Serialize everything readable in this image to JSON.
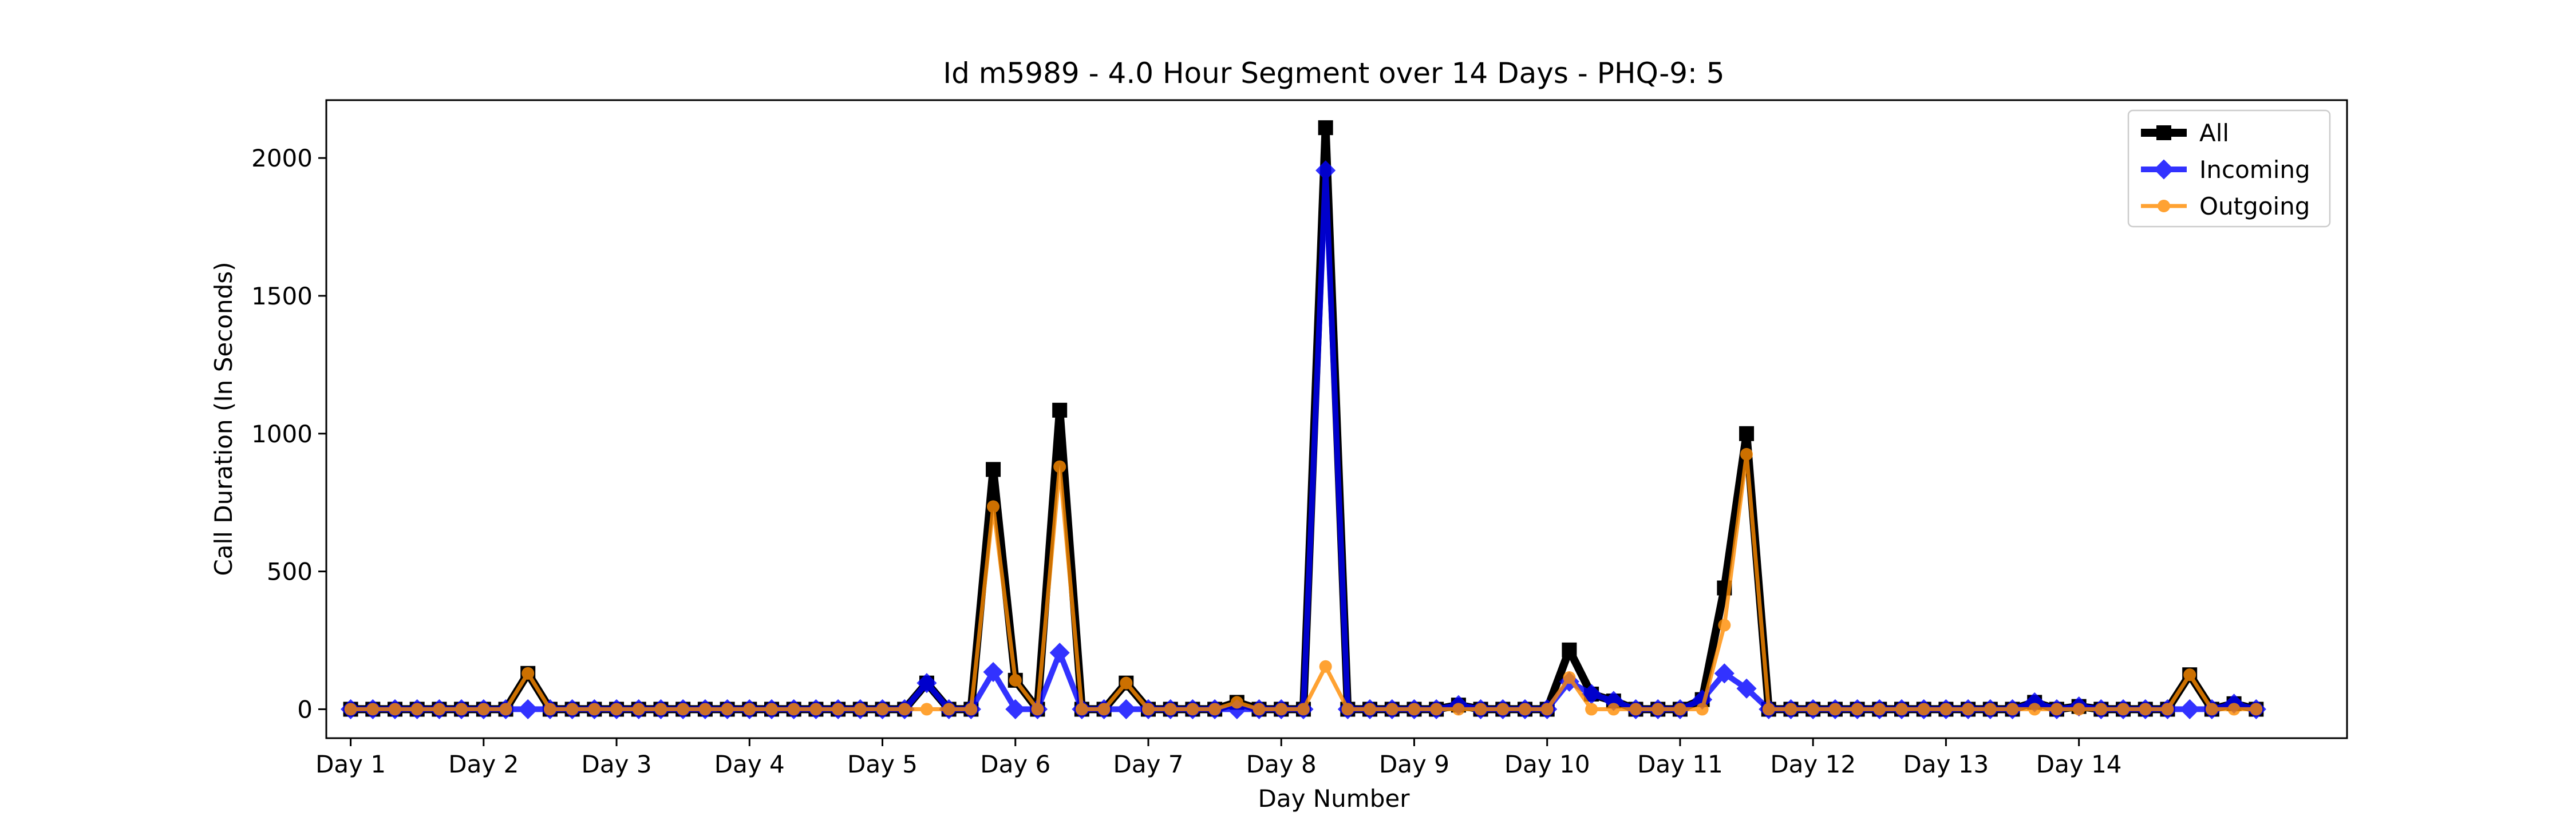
{
  "chart_data": {
    "type": "line",
    "title": "Id m5989 - 4.0 Hour Segment over 14 Days - PHQ-9: 5",
    "xlabel": "Day Number",
    "ylabel": "Call Duration (In Seconds)",
    "xlim": [
      -1.1,
      90.1
    ],
    "ylim": [
      -105,
      2210
    ],
    "yticks": [
      0,
      500,
      1000,
      1500,
      2000
    ],
    "xticks": [
      {
        "pos": 0,
        "label": "Day 1"
      },
      {
        "pos": 6,
        "label": "Day 2"
      },
      {
        "pos": 12,
        "label": "Day 3"
      },
      {
        "pos": 18,
        "label": "Day 4"
      },
      {
        "pos": 24,
        "label": "Day 5"
      },
      {
        "pos": 30,
        "label": "Day 6"
      },
      {
        "pos": 36,
        "label": "Day 7"
      },
      {
        "pos": 42,
        "label": "Day 8"
      },
      {
        "pos": 48,
        "label": "Day 9"
      },
      {
        "pos": 54,
        "label": "Day 10"
      },
      {
        "pos": 60,
        "label": "Day 11"
      },
      {
        "pos": 66,
        "label": "Day 12"
      },
      {
        "pos": 72,
        "label": "Day 13"
      },
      {
        "pos": 78,
        "label": "Day 14"
      }
    ],
    "grid": false,
    "legend": "top-right",
    "series": [
      {
        "name": "All",
        "color": "#000000",
        "marker": "square",
        "values": [
          0,
          0,
          0,
          0,
          0,
          0,
          0,
          0,
          130,
          0,
          0,
          0,
          0,
          0,
          0,
          0,
          0,
          0,
          0,
          0,
          0,
          0,
          0,
          0,
          0,
          0,
          95,
          0,
          0,
          870,
          105,
          0,
          1085,
          0,
          0,
          95,
          0,
          0,
          0,
          0,
          25,
          0,
          0,
          0,
          2110,
          0,
          0,
          0,
          0,
          0,
          15,
          0,
          0,
          0,
          0,
          215,
          55,
          30,
          0,
          0,
          0,
          35,
          440,
          1000,
          0,
          0,
          0,
          0,
          0,
          0,
          0,
          0,
          0,
          0,
          0,
          0,
          25,
          0,
          10,
          0,
          0,
          0,
          0,
          125,
          0,
          20,
          0
        ]
      },
      {
        "name": "Incoming",
        "color": "#0000ff",
        "marker": "diamond",
        "values": [
          0,
          0,
          0,
          0,
          0,
          0,
          0,
          0,
          0,
          0,
          0,
          0,
          0,
          0,
          0,
          0,
          0,
          0,
          0,
          0,
          0,
          0,
          0,
          0,
          0,
          0,
          95,
          0,
          0,
          135,
          0,
          0,
          205,
          0,
          0,
          0,
          0,
          0,
          0,
          0,
          0,
          0,
          0,
          0,
          1955,
          0,
          0,
          0,
          0,
          0,
          15,
          0,
          0,
          0,
          0,
          100,
          55,
          30,
          0,
          0,
          0,
          35,
          130,
          75,
          0,
          0,
          0,
          0,
          0,
          0,
          0,
          0,
          0,
          0,
          0,
          0,
          25,
          0,
          10,
          0,
          0,
          0,
          0,
          0,
          0,
          20,
          0
        ]
      },
      {
        "name": "Outgoing",
        "color": "#ff8c00",
        "marker": "circle",
        "values": [
          0,
          0,
          0,
          0,
          0,
          0,
          0,
          0,
          130,
          0,
          0,
          0,
          0,
          0,
          0,
          0,
          0,
          0,
          0,
          0,
          0,
          0,
          0,
          0,
          0,
          0,
          0,
          0,
          0,
          735,
          105,
          0,
          880,
          0,
          0,
          95,
          0,
          0,
          0,
          0,
          25,
          0,
          0,
          0,
          155,
          0,
          0,
          0,
          0,
          0,
          0,
          0,
          0,
          0,
          0,
          115,
          0,
          0,
          0,
          0,
          0,
          0,
          305,
          925,
          0,
          0,
          0,
          0,
          0,
          0,
          0,
          0,
          0,
          0,
          0,
          0,
          0,
          0,
          0,
          0,
          0,
          0,
          0,
          125,
          0,
          0,
          0
        ]
      }
    ]
  }
}
